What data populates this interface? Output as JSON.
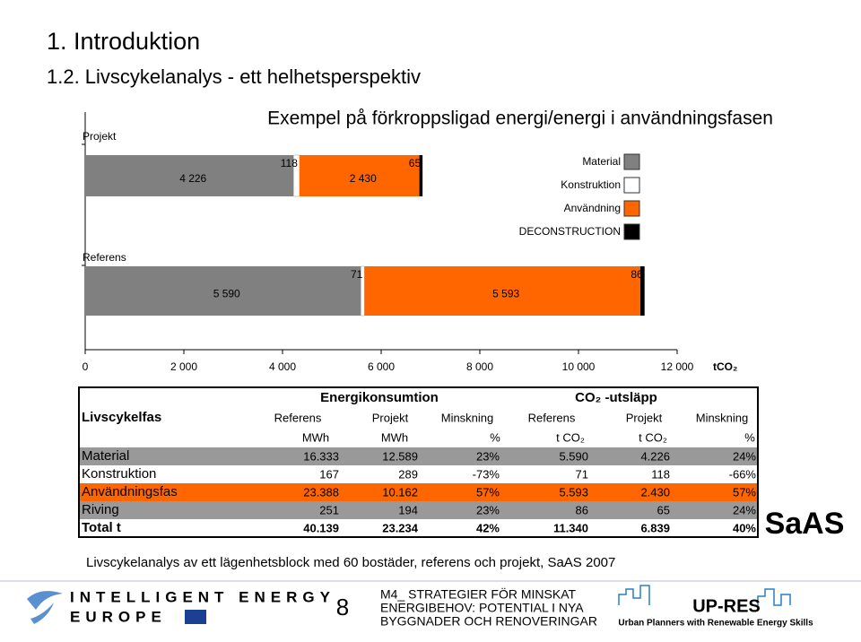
{
  "header": {
    "title": "1. Introduktion",
    "subtitle": "1.2. Livscykelanalys - ett helhetsperspektiv"
  },
  "chart_data": {
    "type": "bar",
    "orientation": "horizontal",
    "stacked": true,
    "title": "Exempel på förkroppsligad energi/energi i användningsfasen",
    "xlabel": "tCO₂",
    "categories": [
      "Projekt",
      "Referens"
    ],
    "series": [
      {
        "name": "Material",
        "color": "#808080",
        "values": [
          4226,
          5590
        ],
        "value_labels": [
          "4 226",
          "5 590"
        ]
      },
      {
        "name": "Konstruktion",
        "color": "#ffffff",
        "values": [
          118,
          71
        ]
      },
      {
        "name": "Användning",
        "color": "#ff6600",
        "values": [
          2430,
          5593
        ],
        "value_labels": [
          "2 430",
          "5 593"
        ]
      },
      {
        "name": "DECONSTRUCTION",
        "color": "#000000",
        "values": [
          65,
          86
        ]
      }
    ],
    "xlim": [
      0,
      12000
    ],
    "xticks": [
      0,
      {
        "value": 2000,
        "label": "2 000"
      },
      {
        "value": 4000,
        "label": "4 000"
      },
      {
        "value": 6000,
        "label": "6 000"
      },
      {
        "value": 8000,
        "label": "8 000"
      },
      {
        "value": 10000,
        "label": "10 000"
      },
      {
        "value": 12000,
        "label": "12 000"
      }
    ],
    "legend": "right"
  },
  "table": {
    "group_headers": [
      "Energikonsumtion",
      "CO₂ -utsläpp"
    ],
    "corner": "Livscykelfas",
    "columns": [
      "Referens",
      "Projekt",
      "Minskning",
      "Referens",
      "Projekt",
      "Minskning"
    ],
    "units": [
      "MWh",
      "MWh",
      "%",
      "t CO₂",
      "t CO₂",
      "%"
    ],
    "rows": [
      [
        "Material",
        "16.333",
        "12.589",
        "23%",
        "5.590",
        "4.226",
        "24%"
      ],
      [
        "Konstruktion",
        "167",
        "289",
        "-73%",
        "71",
        "118",
        "-66%"
      ],
      [
        "Användningsfas",
        "23.388",
        "10.162",
        "57%",
        "5.593",
        "2.430",
        "57%"
      ],
      [
        "Riving",
        "251",
        "194",
        "23%",
        "86",
        "65",
        "24%"
      ],
      [
        "Total t",
        "40.139",
        "23.234",
        "42%",
        "11.340",
        "6.839",
        "40%"
      ]
    ]
  },
  "caption": "Livscykelanalys av ett lägenhetsblock med 60 bostäder, referens och projekt, SaAS 2007",
  "saas_logo": "SaAS",
  "footer": {
    "logo_left": [
      "INTELLIGENT ENERGY",
      "EUROPE"
    ],
    "page": "8",
    "title": [
      "M4_ STRATEGIER FÖR MINSKAT",
      "ENERGIBEHOV: POTENTIAL I NYA",
      "BYGGNADER OCH RENOVERINGAR"
    ],
    "logo_right": "UP-RES",
    "tagline": "Urban Planners with Renewable Energy Skills"
  }
}
